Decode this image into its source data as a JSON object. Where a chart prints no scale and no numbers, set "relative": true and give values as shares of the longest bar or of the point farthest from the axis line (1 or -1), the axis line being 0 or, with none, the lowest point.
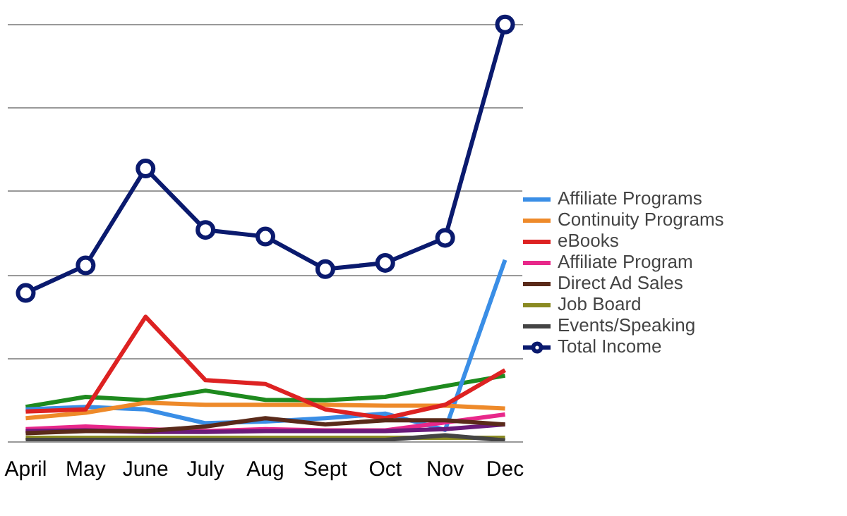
{
  "chart_data": {
    "type": "line",
    "relative": true,
    "grid": "y",
    "legend": "right",
    "line_style": "solid",
    "categories": [
      "April",
      "May",
      "June",
      "July",
      "Aug",
      "Sept",
      "Oct",
      "Nov",
      "Dec"
    ],
    "series": [
      {
        "color": "#1e8a1e",
        "values": [
          0.084,
          0.108,
          0.1,
          0.123,
          0.101,
          0.1,
          0.108,
          0.134,
          0.159
        ]
      },
      {
        "name": "Affiliate Programs",
        "color": "#3a8ee6",
        "values": [
          0.078,
          0.084,
          0.078,
          0.045,
          0.049,
          0.057,
          0.068,
          0.029,
          0.436
        ]
      },
      {
        "name": "Continuity Programs",
        "color": "#ee8a2a",
        "values": [
          0.057,
          0.07,
          0.094,
          0.089,
          0.089,
          0.089,
          0.087,
          0.087,
          0.08
        ]
      },
      {
        "name": "eBooks",
        "color": "#dd2222",
        "values": [
          0.073,
          0.078,
          0.3,
          0.148,
          0.139,
          0.078,
          0.057,
          0.089,
          0.172
        ]
      },
      {
        "name": "Affiliate Program",
        "color": "#e8288a",
        "values": [
          0.031,
          0.037,
          0.031,
          0.026,
          0.031,
          0.028,
          0.028,
          0.047,
          0.066
        ]
      },
      {
        "color": "#6a1a7a",
        "values": [
          0.026,
          0.028,
          0.024,
          0.024,
          0.026,
          0.026,
          0.026,
          0.031,
          0.042
        ]
      },
      {
        "name": "Direct Ad Sales",
        "color": "#5a2a1a",
        "values": [
          0.021,
          0.026,
          0.026,
          0.037,
          0.057,
          0.042,
          0.052,
          0.052,
          0.042
        ]
      },
      {
        "name": "Job Board",
        "color": "#8a8a22",
        "values": [
          0.01,
          0.01,
          0.01,
          0.01,
          0.01,
          0.01,
          0.01,
          0.01,
          0.01
        ]
      },
      {
        "name": "Events/Speaking",
        "color": "#444444",
        "values": [
          0.005,
          0.005,
          0.005,
          0.005,
          0.005,
          0.005,
          0.005,
          0.016,
          0.004
        ]
      },
      {
        "name": "Total Income",
        "color": "#0a1a6e",
        "marker": "circle",
        "values": [
          0.357,
          0.423,
          0.655,
          0.508,
          0.492,
          0.414,
          0.429,
          0.489,
          1.0
        ]
      }
    ]
  }
}
